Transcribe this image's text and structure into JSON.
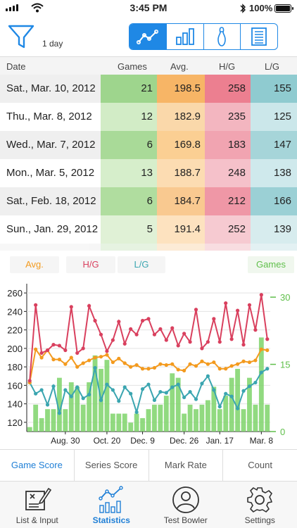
{
  "status": {
    "time": "3:45 PM",
    "battery": "100%"
  },
  "toolbar": {
    "period": "1 day",
    "views": [
      "line-chart-icon",
      "bar-chart-icon",
      "bowling-pin-icon",
      "list-icon"
    ]
  },
  "table": {
    "headers": {
      "date": "Date",
      "games": "Games",
      "avg": "Avg.",
      "hg": "H/G",
      "lg": "L/G"
    },
    "rows": [
      {
        "date": "Sat., Mar. 10, 2012",
        "games": "21",
        "avg": "198.5",
        "hg": "258",
        "lg": "155"
      },
      {
        "date": "Thu., Mar.  8, 2012",
        "games": "12",
        "avg": "182.9",
        "hg": "235",
        "lg": "125"
      },
      {
        "date": "Wed., Mar.  7, 2012",
        "games": "6",
        "avg": "169.8",
        "hg": "183",
        "lg": "147"
      },
      {
        "date": "Mon., Mar.  5, 2012",
        "games": "13",
        "avg": "188.7",
        "hg": "248",
        "lg": "138"
      },
      {
        "date": "Sat., Feb. 18, 2012",
        "games": "6",
        "avg": "184.7",
        "hg": "212",
        "lg": "166"
      },
      {
        "date": "Sun., Jan. 29, 2012",
        "games": "5",
        "avg": "191.4",
        "hg": "252",
        "lg": "139"
      }
    ]
  },
  "legend": {
    "avg": "Avg.",
    "hg": "H/G",
    "lg": "L/G",
    "games": "Games"
  },
  "colors": {
    "avg": "#f39a1e",
    "hg": "#d9405e",
    "lg": "#3aa5b0",
    "games": "#7ed36a",
    "accent": "#1f88e5"
  },
  "chart_data": {
    "type": "line",
    "x_ticks": [
      "Aug. 30",
      "Oct. 20",
      "Dec. 9",
      "Dec. 26",
      "Jan. 17",
      "Mar. 8"
    ],
    "y_left": {
      "ticks": [
        120,
        140,
        160,
        180,
        200,
        220,
        240,
        260
      ],
      "range": [
        110,
        270
      ]
    },
    "y_right": {
      "ticks": [
        0,
        15,
        30
      ],
      "range": [
        0,
        33
      ]
    },
    "series": [
      {
        "name": "H/G",
        "values": [
          165,
          247,
          195,
          198,
          204,
          203,
          198,
          245,
          195,
          200,
          246,
          230,
          215,
          197,
          209,
          229,
          205,
          221,
          215,
          230,
          232,
          215,
          221,
          209,
          222,
          203,
          216,
          207,
          242,
          200,
          207,
          232,
          207,
          249,
          210,
          241,
          204,
          247,
          220,
          258,
          210
        ]
      },
      {
        "name": "Avg.",
        "values": [
          163,
          199,
          190,
          198,
          188,
          188,
          183,
          190,
          180,
          184,
          187,
          190,
          191,
          193,
          185,
          189,
          184,
          180,
          182,
          178,
          178,
          179,
          183,
          182,
          183,
          177,
          176,
          183,
          181,
          186,
          183,
          185,
          178,
          178,
          181,
          183,
          186,
          185,
          187,
          199,
          198
        ]
      },
      {
        "name": "L/G",
        "values": [
          163,
          151,
          155,
          139,
          159,
          130,
          155,
          148,
          158,
          146,
          150,
          179,
          144,
          161,
          155,
          143,
          158,
          151,
          131,
          156,
          161,
          144,
          153,
          152,
          158,
          161,
          147,
          153,
          145,
          162,
          170,
          155,
          137,
          151,
          148,
          135,
          154,
          159,
          163,
          174,
          178
        ]
      },
      {
        "name": "Games",
        "values": [
          1,
          6,
          3,
          5,
          5,
          12,
          5,
          11,
          10,
          6,
          11,
          17,
          14,
          16,
          4,
          4,
          4,
          2,
          4,
          3,
          5,
          6,
          6,
          8,
          13,
          12,
          4,
          6,
          5,
          6,
          7,
          10,
          5,
          8,
          12,
          14,
          5,
          12,
          6,
          21,
          6
        ]
      }
    ]
  },
  "subtabs": [
    "Game Score",
    "Series Score",
    "Mark Rate",
    "Count"
  ],
  "tabbar": [
    {
      "label": "List & Input",
      "icon": "list-input-icon"
    },
    {
      "label": "Statistics",
      "icon": "statistics-icon"
    },
    {
      "label": "Test Bowler",
      "icon": "bowler-icon"
    },
    {
      "label": "Settings",
      "icon": "gear-icon"
    }
  ]
}
